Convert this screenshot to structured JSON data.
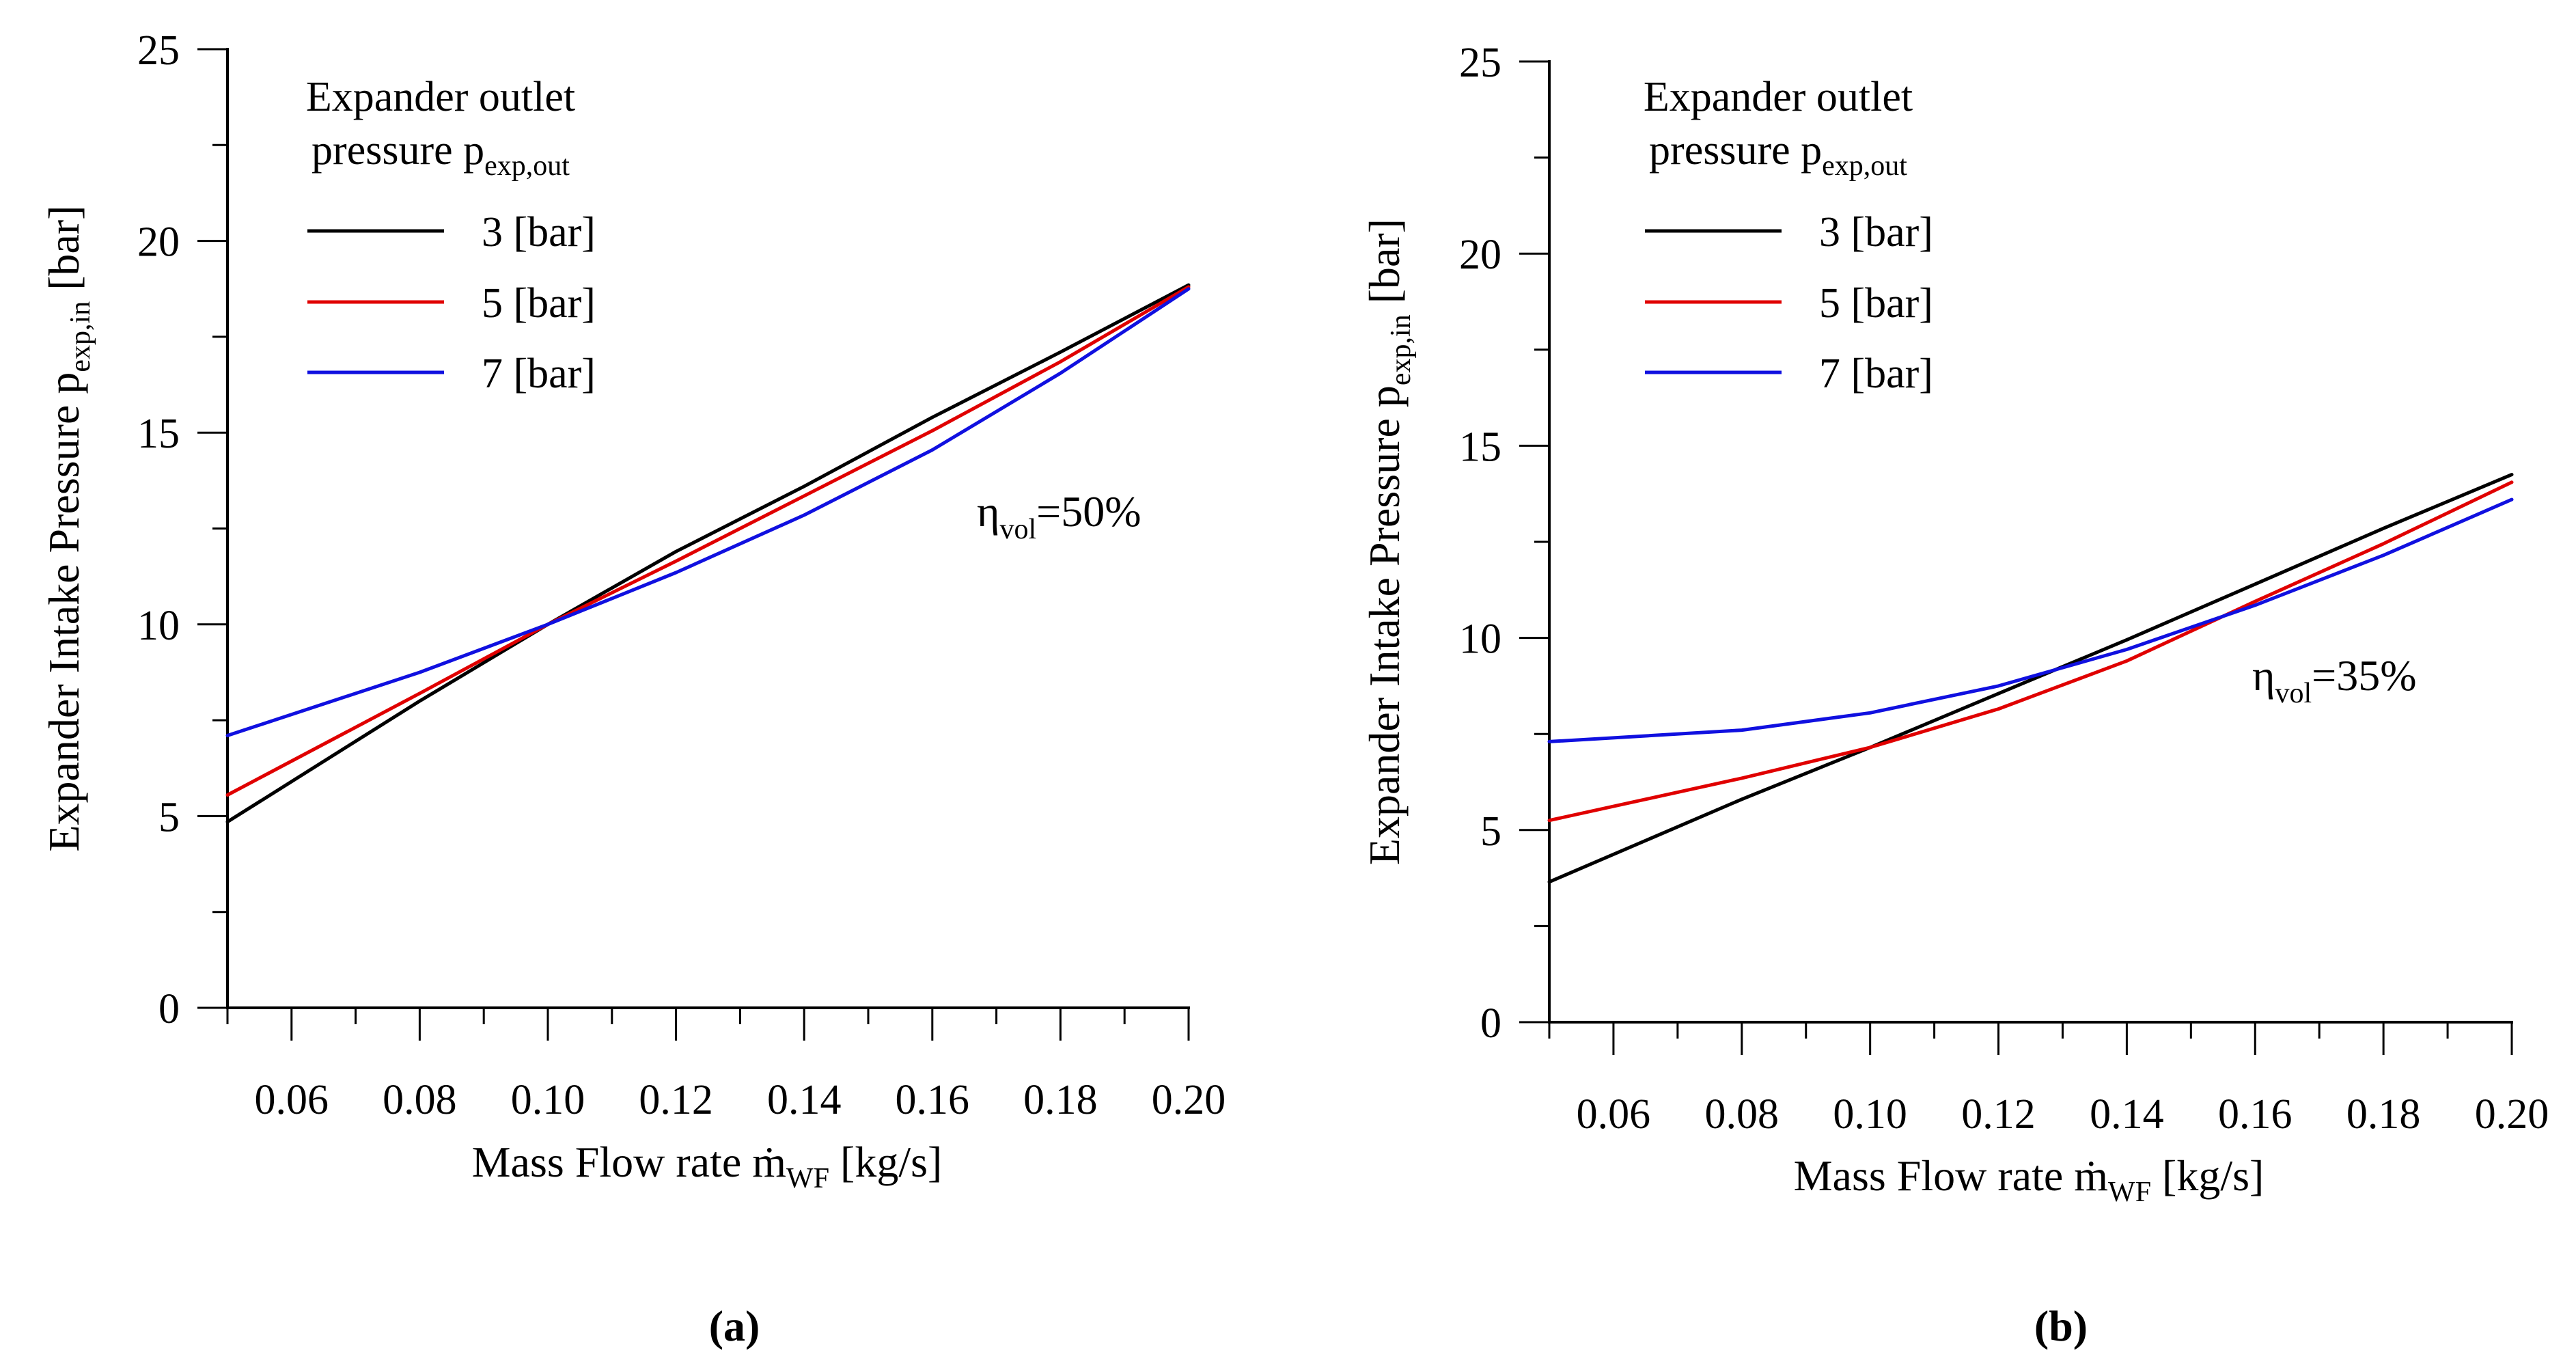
{
  "chart_data": [
    {
      "type": "line",
      "panel_label": "(a)",
      "xlabel": {
        "prefix": "Mass Flow rate ",
        "symbol": "ṁ",
        "sub": "WF",
        "suffix": " [kg/s]"
      },
      "ylabel": {
        "prefix": "Expander Intake Pressure p",
        "sub": "exp,in",
        "suffix": " [bar]"
      },
      "xlim": [
        0.05,
        0.2
      ],
      "ylim": [
        0,
        25
      ],
      "xticks": [
        0.06,
        0.08,
        0.1,
        0.12,
        0.14,
        0.16,
        0.18,
        0.2
      ],
      "xtick_labels": [
        "0.06",
        "0.08",
        "0.10",
        "0.12",
        "0.14",
        "0.16",
        "0.18",
        "0.20"
      ],
      "yticks": [
        0,
        5,
        10,
        15,
        20,
        25
      ],
      "ytick_labels": [
        "0",
        "5",
        "10",
        "15",
        "20",
        "25"
      ],
      "legend": {
        "title_line1": "Expander outlet",
        "title_line2": {
          "prefix": "pressure p",
          "sub": "exp,out"
        },
        "position": "top-left"
      },
      "annotation": {
        "prefix": "η",
        "sub": "vol",
        "suffix": "=50%"
      },
      "series": [
        {
          "name": "3 [bar]",
          "color": "#000000",
          "x": [
            0.05,
            0.08,
            0.1,
            0.12,
            0.14,
            0.16,
            0.18,
            0.2
          ],
          "y": [
            4.85,
            8.0,
            10.0,
            11.9,
            13.6,
            15.4,
            17.1,
            18.85
          ]
        },
        {
          "name": "5 [bar]",
          "color": "#e00000",
          "x": [
            0.05,
            0.08,
            0.1,
            0.12,
            0.14,
            0.16,
            0.18,
            0.2
          ],
          "y": [
            5.55,
            8.2,
            10.0,
            11.65,
            13.35,
            15.05,
            16.85,
            18.8
          ]
        },
        {
          "name": "7 [bar]",
          "color": "#1010e0",
          "x": [
            0.05,
            0.08,
            0.1,
            0.12,
            0.14,
            0.16,
            0.18,
            0.2
          ],
          "y": [
            7.1,
            8.75,
            10.0,
            11.35,
            12.85,
            14.55,
            16.55,
            18.75
          ]
        }
      ]
    },
    {
      "type": "line",
      "panel_label": "(b)",
      "xlabel": {
        "prefix": "Mass Flow rate ",
        "symbol": "ṁ",
        "sub": "WF",
        "suffix": " [kg/s]"
      },
      "ylabel": {
        "prefix": "Expander Intake Pressure p",
        "sub": "exp,in",
        "suffix": " [bar]"
      },
      "xlim": [
        0.05,
        0.2
      ],
      "ylim": [
        0,
        25
      ],
      "xticks": [
        0.06,
        0.08,
        0.1,
        0.12,
        0.14,
        0.16,
        0.18,
        0.2
      ],
      "xtick_labels": [
        "0.06",
        "0.08",
        "0.10",
        "0.12",
        "0.14",
        "0.16",
        "0.18",
        "0.20"
      ],
      "yticks": [
        0,
        5,
        10,
        15,
        20,
        25
      ],
      "ytick_labels": [
        "0",
        "5",
        "10",
        "15",
        "20",
        "25"
      ],
      "legend": {
        "title_line1": "Expander outlet",
        "title_line2": {
          "prefix": "pressure p",
          "sub": "exp,out"
        },
        "position": "top-left"
      },
      "annotation": {
        "prefix": "η",
        "sub": "vol",
        "suffix": "=35%"
      },
      "series": [
        {
          "name": "3 [bar]",
          "color": "#000000",
          "x": [
            0.05,
            0.08,
            0.1,
            0.12,
            0.14,
            0.16,
            0.18,
            0.2
          ],
          "y": [
            3.65,
            5.8,
            7.15,
            8.55,
            9.95,
            11.4,
            12.85,
            14.25
          ]
        },
        {
          "name": "5 [bar]",
          "color": "#e00000",
          "x": [
            0.05,
            0.08,
            0.1,
            0.12,
            0.14,
            0.16,
            0.18,
            0.2
          ],
          "y": [
            5.25,
            6.35,
            7.15,
            8.15,
            9.4,
            10.95,
            12.45,
            14.05
          ]
        },
        {
          "name": "7 [bar]",
          "color": "#1010e0",
          "x": [
            0.05,
            0.08,
            0.1,
            0.12,
            0.14,
            0.16,
            0.18,
            0.2
          ],
          "y": [
            7.3,
            7.6,
            8.05,
            8.75,
            9.7,
            10.85,
            12.15,
            13.6
          ]
        }
      ]
    }
  ]
}
